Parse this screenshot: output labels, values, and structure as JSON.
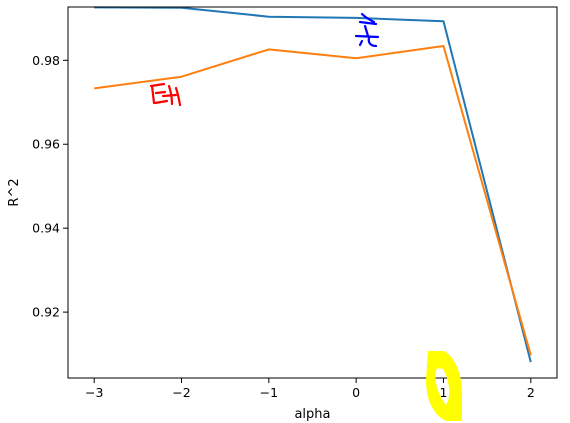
{
  "chart_data": {
    "type": "line",
    "xlabel": "alpha",
    "ylabel": "R^2",
    "xlim": [
      -3.3,
      2.3
    ],
    "ylim": [
      0.9043,
      0.9927
    ],
    "x_ticks": [
      -3,
      -2,
      -1,
      0,
      1,
      2
    ],
    "y_ticks": [
      0.92,
      0.94,
      0.96,
      0.98
    ],
    "x_tick_labels": [
      "−3",
      "−2",
      "−1",
      "0",
      "1",
      "2"
    ],
    "y_tick_labels": [
      "0.92",
      "0.94",
      "0.96",
      "0.98"
    ],
    "grid": false,
    "legend": "none",
    "series": [
      {
        "color": "#1f77b4",
        "x": [
          -3,
          -2,
          -1,
          0,
          1,
          2
        ],
        "y": [
          0.9926,
          0.9925,
          0.9904,
          0.9901,
          0.9893,
          0.9081
        ]
      },
      {
        "color": "#ff7f0e",
        "x": [
          -3,
          -2,
          -1,
          0,
          1,
          2
        ],
        "y": [
          0.9733,
          0.9761,
          0.9826,
          0.9805,
          0.9834,
          0.9097
        ]
      }
    ],
    "annotations": [
      {
        "kind": "handwritten-scribble",
        "color": "#ff0000"
      },
      {
        "kind": "handwritten-scribble",
        "color": "#0000ff"
      },
      {
        "kind": "highlighter-mark",
        "color": "#ffff00"
      }
    ]
  }
}
